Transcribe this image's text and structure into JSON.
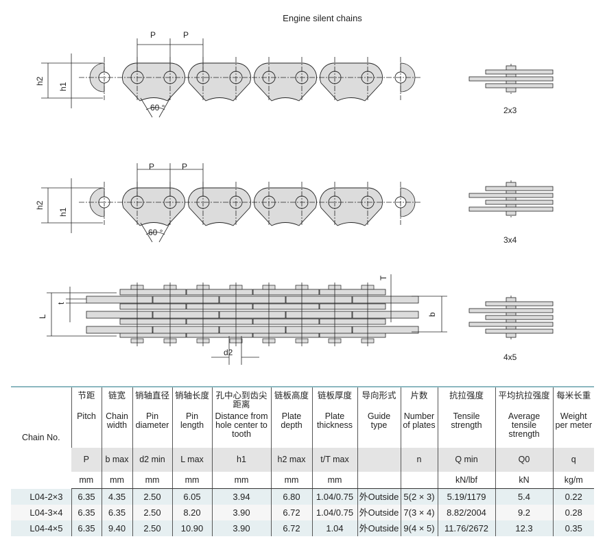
{
  "title": "Engine silent chains",
  "diagram_labels": {
    "pitch": "P",
    "h2": "h2",
    "h1": "h1",
    "angle": "60 °",
    "L": "L",
    "t": "t",
    "T": "T",
    "b": "b",
    "d2": "d2",
    "view_2x3": "2x3",
    "view_3x4": "3x4",
    "view_4x5": "4x5"
  },
  "colors": {
    "plate_fill": "#dcdcdc",
    "line": "#222222",
    "header_rule": "#8ab7bf",
    "row_tint": "#e6eff1"
  },
  "table": {
    "chain_no_label": "Chain No.",
    "columns": [
      {
        "cn": "节距",
        "en": "Pitch",
        "sym": "P",
        "unit": "mm"
      },
      {
        "cn": "链宽",
        "en": "Chain width",
        "sym": "b max",
        "unit": "mm"
      },
      {
        "cn": "销轴直径",
        "en": "Pin diameter",
        "sym": "d2 min",
        "unit": "mm"
      },
      {
        "cn": "销轴长度",
        "en": "Pin length",
        "sym": "L max",
        "unit": "mm"
      },
      {
        "cn": "孔中心到齿尖距离",
        "en": "Distance from hole center to tooth",
        "sym": "h1",
        "unit": "mm"
      },
      {
        "cn": "链板高度",
        "en": "Plate depth",
        "sym": "h2 max",
        "unit": "mm"
      },
      {
        "cn": "链板厚度",
        "en": "Plate thickness",
        "sym": "t/T max",
        "unit": "mm"
      },
      {
        "cn": "导向形式",
        "en": "Guide type",
        "sym": "",
        "unit": ""
      },
      {
        "cn": "片数",
        "en": "Number of plates",
        "sym": "n",
        "unit": ""
      },
      {
        "cn": "抗拉强度",
        "en": "Tensile strength",
        "sym": "Q min",
        "unit": "kN/lbf"
      },
      {
        "cn": "平均抗拉强度",
        "en": "Average tensile strength",
        "sym": "Q0",
        "unit": "kN"
      },
      {
        "cn": "每米长重",
        "en": "Weight per meter",
        "sym": "q",
        "unit": "kg/m"
      }
    ],
    "rows": [
      [
        "L04-2×3",
        "6.35",
        "4.35",
        "2.50",
        "6.05",
        "3.94",
        "6.80",
        "1.04/0.75",
        "外Outside",
        "5(2 × 3)",
        "5.19/1179",
        "5.4",
        "0.22"
      ],
      [
        "L04-3×4",
        "6.35",
        "6.35",
        "2.50",
        "8.20",
        "3.90",
        "6.72",
        "1.04/0.75",
        "外Outside",
        "7(3 × 4)",
        "8.82/2004",
        "9.2",
        "0.28"
      ],
      [
        "L04-4×5",
        "6.35",
        "9.40",
        "2.50",
        "10.90",
        "3.90",
        "6.72",
        "1.04",
        "外Outside",
        "9(4 × 5)",
        "11.76/2672",
        "12.3",
        "0.35"
      ]
    ]
  }
}
